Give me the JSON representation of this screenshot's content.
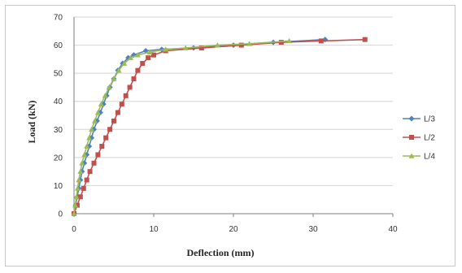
{
  "chart_data": {
    "type": "line",
    "xlabel": "Deflection (mm)",
    "ylabel": "Load (kN)",
    "xlim": [
      0,
      40
    ],
    "ylim": [
      0,
      70
    ],
    "x_ticks": [
      0,
      10,
      20,
      30,
      40
    ],
    "y_ticks": [
      0,
      10,
      20,
      30,
      40,
      50,
      60,
      70
    ],
    "grid": "horizontal",
    "legend_position": "right",
    "series": [
      {
        "name": "L/3",
        "color": "#4f81bd",
        "marker": "diamond",
        "points": [
          [
            0,
            0
          ],
          [
            0.2,
            3
          ],
          [
            0.4,
            6
          ],
          [
            0.6,
            9
          ],
          [
            0.8,
            12
          ],
          [
            1.0,
            15
          ],
          [
            1.3,
            18
          ],
          [
            1.6,
            21
          ],
          [
            1.9,
            24
          ],
          [
            2.2,
            27
          ],
          [
            2.5,
            30
          ],
          [
            2.9,
            33
          ],
          [
            3.3,
            36
          ],
          [
            3.7,
            39
          ],
          [
            4.1,
            42
          ],
          [
            4.5,
            45
          ],
          [
            5.0,
            48
          ],
          [
            5.5,
            51
          ],
          [
            6.1,
            53.5
          ],
          [
            6.8,
            55.5
          ],
          [
            7.5,
            56.5
          ],
          [
            9.0,
            58
          ],
          [
            11.0,
            58.5
          ],
          [
            15,
            59
          ],
          [
            20,
            60
          ],
          [
            25,
            61
          ],
          [
            31.5,
            62
          ]
        ]
      },
      {
        "name": "L/2",
        "color": "#c0504d",
        "marker": "square",
        "points": [
          [
            0,
            0
          ],
          [
            0.4,
            3
          ],
          [
            0.8,
            6
          ],
          [
            1.2,
            9
          ],
          [
            1.6,
            12
          ],
          [
            2.0,
            15
          ],
          [
            2.5,
            18
          ],
          [
            3.0,
            21
          ],
          [
            3.5,
            24
          ],
          [
            4.0,
            27
          ],
          [
            4.5,
            30
          ],
          [
            5.0,
            33
          ],
          [
            5.5,
            36
          ],
          [
            6.0,
            39
          ],
          [
            6.5,
            42
          ],
          [
            7.0,
            45
          ],
          [
            7.5,
            48
          ],
          [
            8.0,
            51
          ],
          [
            8.6,
            53.5
          ],
          [
            9.3,
            55.5
          ],
          [
            10.0,
            56.5
          ],
          [
            11.5,
            58
          ],
          [
            16,
            59
          ],
          [
            21,
            60
          ],
          [
            26,
            61
          ],
          [
            31,
            61.5
          ],
          [
            36.5,
            62
          ]
        ]
      },
      {
        "name": "L/4",
        "color": "#9bbb59",
        "marker": "triangle",
        "points": [
          [
            0,
            0
          ],
          [
            0.15,
            3
          ],
          [
            0.3,
            6
          ],
          [
            0.45,
            9
          ],
          [
            0.6,
            12
          ],
          [
            0.8,
            15
          ],
          [
            1.0,
            18
          ],
          [
            1.3,
            21
          ],
          [
            1.6,
            24
          ],
          [
            1.9,
            27
          ],
          [
            2.2,
            30
          ],
          [
            2.6,
            33
          ],
          [
            3.0,
            36
          ],
          [
            3.4,
            39
          ],
          [
            3.9,
            42
          ],
          [
            4.4,
            45
          ],
          [
            5.0,
            48
          ],
          [
            5.6,
            51
          ],
          [
            6.3,
            53.5
          ],
          [
            7.1,
            55.5
          ],
          [
            8.0,
            56.5
          ],
          [
            9.5,
            57.5
          ],
          [
            11.5,
            58.5
          ],
          [
            14,
            59
          ],
          [
            18,
            60
          ],
          [
            22,
            60.5
          ],
          [
            27,
            61.5
          ]
        ]
      }
    ]
  }
}
